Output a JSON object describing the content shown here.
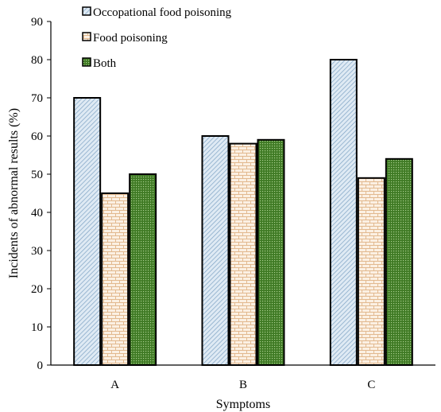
{
  "chart_data": {
    "type": "bar",
    "title": "",
    "xlabel": "Symptoms",
    "ylabel": "Incidents of abnormal results (%)",
    "categories": [
      "A",
      "B",
      "C"
    ],
    "ylim": [
      0,
      90
    ],
    "yticks": [
      0,
      10,
      20,
      30,
      40,
      50,
      60,
      70,
      80,
      90
    ],
    "grid": false,
    "legend_position": "top-left",
    "series": [
      {
        "name": "Occopational food poisoning",
        "values": [
          70,
          60,
          80
        ],
        "color": "#c9dbea",
        "pattern": "diagonal-hatch"
      },
      {
        "name": "Food poisoning",
        "values": [
          45,
          58,
          49
        ],
        "color": "#f6e4d0",
        "pattern": "brick"
      },
      {
        "name": "Both",
        "values": [
          50,
          59,
          54
        ],
        "color": "#4f8a2e",
        "pattern": "dotted-grid"
      }
    ]
  }
}
